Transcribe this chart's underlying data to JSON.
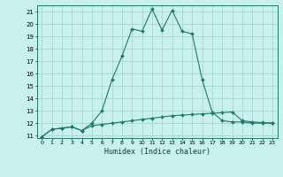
{
  "xlabel": "Humidex (Indice chaleur)",
  "bg_color": "#c8f0ec",
  "grid_color": "#a0d8d4",
  "line_color": "#1a7a6e",
  "xlim": [
    -0.5,
    23.5
  ],
  "ylim": [
    10.8,
    21.5
  ],
  "yticks": [
    11,
    12,
    13,
    14,
    15,
    16,
    17,
    18,
    19,
    20,
    21
  ],
  "xticks": [
    0,
    1,
    2,
    3,
    4,
    5,
    6,
    7,
    8,
    9,
    10,
    11,
    12,
    13,
    14,
    15,
    16,
    17,
    18,
    19,
    20,
    21,
    22,
    23
  ],
  "curve1_x": [
    0,
    1,
    2,
    3,
    4,
    5,
    6,
    7,
    8,
    9,
    10,
    11,
    12,
    13,
    14,
    15,
    16,
    17,
    18,
    19,
    20,
    21,
    22,
    23
  ],
  "curve1_y": [
    10.9,
    11.5,
    11.6,
    11.7,
    11.4,
    12.0,
    13.0,
    15.5,
    17.4,
    19.6,
    19.4,
    21.2,
    19.5,
    21.1,
    19.4,
    19.2,
    15.5,
    12.9,
    12.2,
    12.1,
    12.1,
    12.0,
    12.0,
    12.0
  ],
  "curve2_x": [
    0,
    1,
    2,
    3,
    4,
    5,
    6,
    7,
    8,
    9,
    10,
    11,
    12,
    13,
    14,
    15,
    16,
    17,
    18,
    19,
    20,
    21,
    22,
    23
  ],
  "curve2_y": [
    10.9,
    11.5,
    11.6,
    11.7,
    11.4,
    11.8,
    11.9,
    12.0,
    12.1,
    12.2,
    12.3,
    12.4,
    12.5,
    12.6,
    12.65,
    12.7,
    12.75,
    12.8,
    12.85,
    12.9,
    12.2,
    12.1,
    12.05,
    12.0
  ]
}
